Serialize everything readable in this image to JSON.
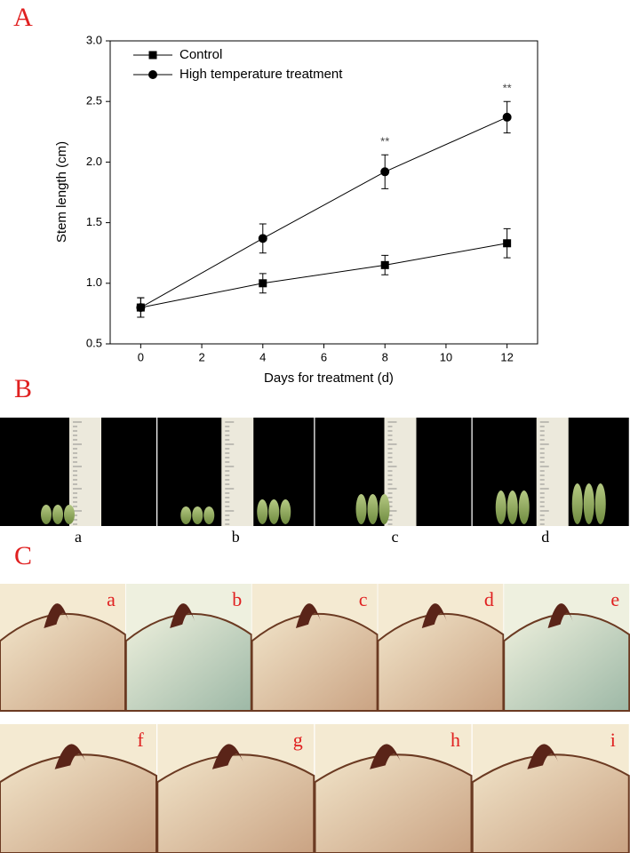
{
  "panel_letters": [
    "A",
    "B",
    "C"
  ],
  "chart_data": {
    "type": "line",
    "xlabel": "Days for treatment (d)",
    "ylabel": "Stem length (cm)",
    "x": [
      0,
      4,
      8,
      12
    ],
    "series": [
      {
        "name": "Control",
        "marker": "square",
        "color": "#000000",
        "values": [
          0.8,
          1.0,
          1.15,
          1.33
        ],
        "errors": [
          0.08,
          0.08,
          0.08,
          0.12
        ]
      },
      {
        "name": "High temperature treatment",
        "marker": "circle",
        "color": "#000000",
        "values": [
          0.8,
          1.37,
          1.92,
          2.37
        ],
        "errors": [
          0.08,
          0.12,
          0.14,
          0.13
        ]
      }
    ],
    "annotations": [
      {
        "text": "**",
        "x": 8,
        "series": 1
      },
      {
        "text": "**",
        "x": 12,
        "series": 1
      }
    ],
    "xlim": [
      -1,
      13
    ],
    "xticks": [
      0,
      2,
      4,
      6,
      8,
      10,
      12
    ],
    "ylim": [
      0.5,
      3.0
    ],
    "yticks": [
      0.5,
      {
        "value": 1,
        "label": "1.0"
      },
      1.5,
      {
        "value": 2,
        "label": "2.0"
      },
      2.5,
      {
        "value": 3,
        "label": "3.0"
      }
    ],
    "legend": "upper left",
    "grid": false
  },
  "panel_b": {
    "labels": [
      "a",
      "b",
      "c",
      "d"
    ]
  },
  "panel_c": {
    "labels": [
      "a",
      "b",
      "c",
      "d",
      "e",
      "f",
      "g",
      "h",
      "i"
    ]
  }
}
